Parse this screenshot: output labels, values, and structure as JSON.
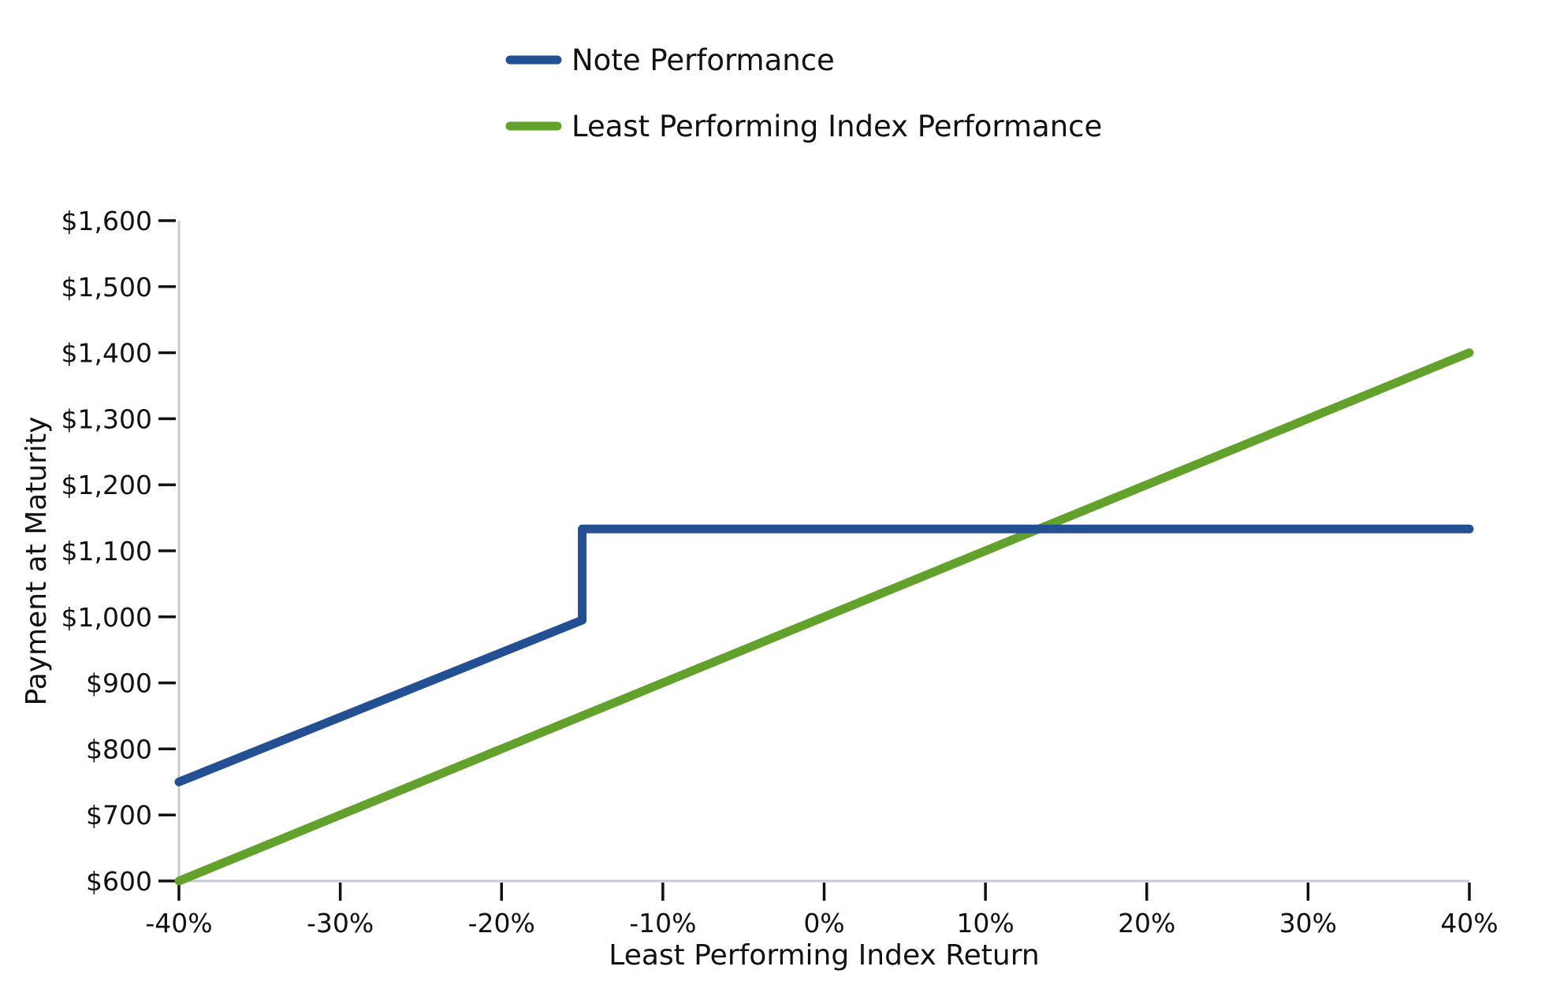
{
  "chart_data": {
    "type": "line",
    "title": "",
    "xlabel": "Least Performing Index Return",
    "ylabel": "Payment at Maturity",
    "xlim": [
      -40,
      40
    ],
    "ylim": [
      600,
      1600
    ],
    "x_ticks": [
      -40,
      -30,
      -20,
      -10,
      0,
      10,
      20,
      30,
      40
    ],
    "x_tick_labels": [
      "-40%",
      "-30%",
      "-20%",
      "-10%",
      "0%",
      "10%",
      "20%",
      "30%",
      "40%"
    ],
    "y_ticks": [
      600,
      700,
      800,
      900,
      1000,
      1100,
      1200,
      1300,
      1400,
      1500,
      1600
    ],
    "y_tick_labels": [
      "$600",
      "$700",
      "$800",
      "$900",
      "$1,000",
      "$1,100",
      "$1,200",
      "$1,300",
      "$1,400",
      "$1,500",
      "$1,600"
    ],
    "grid": false,
    "legend_position": "top-center",
    "series": [
      {
        "name": "Note Performance",
        "color": "#234f93",
        "x": [
          -40,
          -15,
          -15,
          40
        ],
        "y": [
          750,
          995,
          1133,
          1133
        ]
      },
      {
        "name": "Least Performing Index Performance",
        "color": "#62a12b",
        "x": [
          -40,
          40
        ],
        "y": [
          600,
          1400
        ]
      }
    ]
  }
}
